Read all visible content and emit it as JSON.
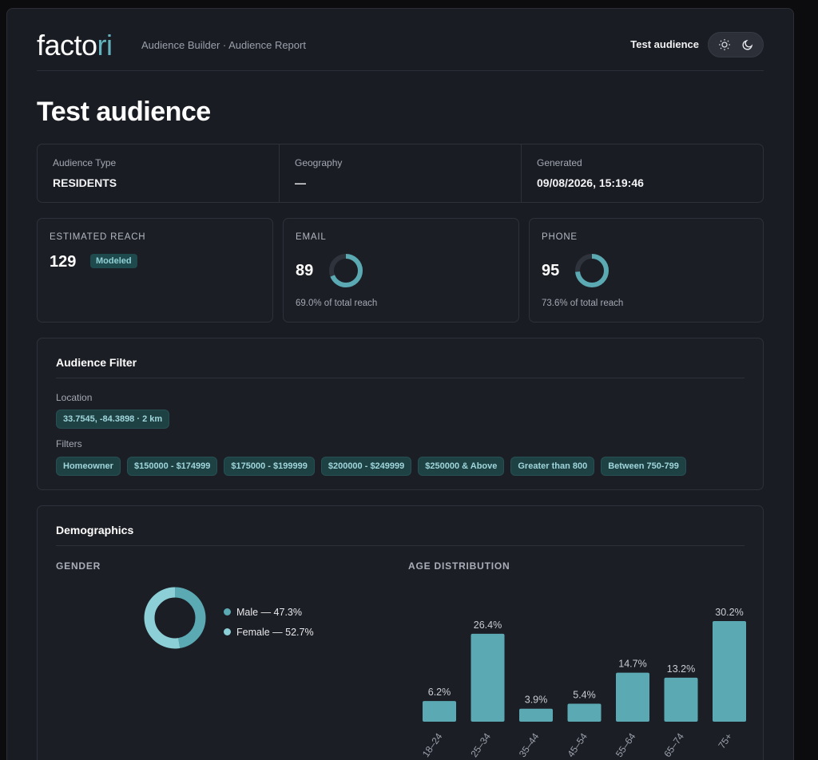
{
  "header": {
    "logo_main": "facto",
    "logo_accent": "ri",
    "breadcrumb": "Audience Builder · Audience Report",
    "audience_name": "Test audience",
    "icons": [
      "sun-icon",
      "moon-icon"
    ]
  },
  "page_title": "Test audience",
  "meta": [
    {
      "label": "Audience Type",
      "value": "RESIDENTS"
    },
    {
      "label": "Geography",
      "value": "—"
    },
    {
      "label": "Generated",
      "value": "09/08/2026, 15:19:46"
    }
  ],
  "stats": {
    "reach": {
      "label": "ESTIMATED REACH",
      "value": "129",
      "badge": "Modeled"
    },
    "email": {
      "label": "EMAIL",
      "value": "89",
      "sub": "69.0% of total reach",
      "fraction": 0.69
    },
    "phone": {
      "label": "PHONE",
      "value": "95",
      "sub": "73.6% of total reach",
      "fraction": 0.736
    }
  },
  "filter": {
    "title": "Audience Filter",
    "location_label": "Location",
    "location": "33.7545, -84.3898 · 2 km",
    "filters_label": "Filters",
    "chips": [
      "Homeowner",
      "$150000 - $174999",
      "$175000 - $199999",
      "$200000 - $249999",
      "$250000 & Above",
      "Greater than 800",
      "Between 750-799"
    ]
  },
  "demographics": {
    "title": "Demographics",
    "gender_label": "GENDER",
    "age_label": "AGE DISTRIBUTION"
  },
  "colors": {
    "accent": "#5aa9b3",
    "accent_light": "#7fc4cc",
    "track": "#2f333c",
    "chip_bg": "#1e4144"
  },
  "chart_data": [
    {
      "type": "pie",
      "title": "GENDER",
      "categories": [
        "Male",
        "Female"
      ],
      "values": [
        47.3,
        52.7
      ],
      "labels": [
        "Male — 47.3%",
        "Female — 52.7%"
      ],
      "colors": [
        "#5aa9b3",
        "#8ccfd6"
      ]
    },
    {
      "type": "bar",
      "title": "AGE DISTRIBUTION",
      "categories": [
        "18–24",
        "25–34",
        "35–44",
        "45–54",
        "55–64",
        "65–74",
        "75+"
      ],
      "values": [
        6.2,
        26.4,
        3.9,
        5.4,
        14.7,
        13.2,
        30.2
      ],
      "value_labels": [
        "6.2%",
        "26.4%",
        "3.9%",
        "5.4%",
        "14.7%",
        "13.2%",
        "30.2%"
      ],
      "color": "#5aa9b3"
    }
  ]
}
